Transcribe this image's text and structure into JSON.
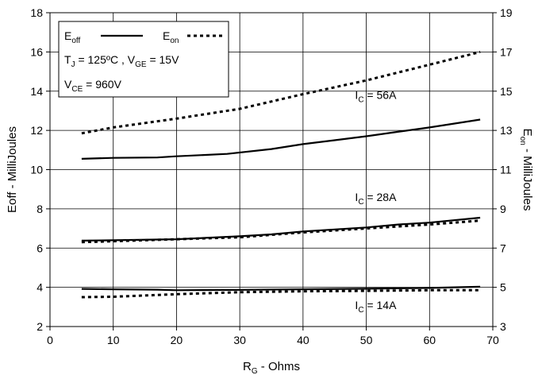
{
  "chart_data": {
    "type": "line",
    "xlabel": {
      "main": "R",
      "sub": "G",
      "rest": " - Ohms"
    },
    "ylabel_left": "Eoff - MilliJoules",
    "ylabel_right": {
      "main": "E",
      "sub": "on",
      "rest": " - MilliJoules"
    },
    "xlim": [
      0,
      70
    ],
    "ylim_left": [
      2,
      18
    ],
    "ylim_right": [
      3,
      19
    ],
    "x_ticks": [
      0,
      10,
      20,
      30,
      40,
      50,
      60,
      70
    ],
    "y_ticks_left": [
      2,
      4,
      6,
      8,
      10,
      12,
      14,
      16,
      18
    ],
    "y_ticks_right": [
      3,
      5,
      7,
      9,
      11,
      13,
      15,
      17,
      19
    ],
    "grid": true,
    "legend": {
      "placement": "top-left",
      "eoff": {
        "main": "E",
        "sub": "off"
      },
      "eon": {
        "main": "E",
        "sub": "on"
      },
      "line1": {
        "a": "T",
        "a_sub": "J",
        "b": " = 125ºC ,  V",
        "b_sub": "GE",
        "c": " = 15V"
      },
      "line2": {
        "a": "V",
        "a_sub": "CE",
        "b": " = 960V"
      }
    },
    "annotations": [
      {
        "pre": "I",
        "sub": "C",
        "post": " = 56A",
        "x": 55,
        "y": 13.8,
        "axis": "left"
      },
      {
        "pre": "I",
        "sub": "C",
        "post": " = 28A",
        "x": 55,
        "y": 8.6,
        "axis": "left"
      },
      {
        "pre": "I",
        "sub": "C",
        "post": " = 14A",
        "x": 55,
        "y": 3.1,
        "axis": "left"
      }
    ],
    "series": [
      {
        "kind": "eoff",
        "current": "56A",
        "axis": "left",
        "style": "solid",
        "x": [
          5,
          10,
          17,
          20,
          28,
          35,
          40,
          45,
          50,
          55,
          60,
          68
        ],
        "values": [
          10.55,
          10.6,
          10.62,
          10.68,
          10.8,
          11.05,
          11.3,
          11.5,
          11.7,
          11.93,
          12.15,
          12.55
        ]
      },
      {
        "kind": "eon",
        "current": "56A",
        "axis": "right",
        "style": "dashed",
        "x": [
          5,
          10,
          20,
          30,
          40,
          50,
          60,
          68
        ],
        "values": [
          12.85,
          13.15,
          13.6,
          14.1,
          14.85,
          15.55,
          16.35,
          17.0
        ]
      },
      {
        "kind": "eoff",
        "current": "28A",
        "axis": "left",
        "style": "solid",
        "x": [
          5,
          10,
          20,
          30,
          35,
          40,
          45,
          50,
          55,
          60,
          68
        ],
        "values": [
          6.38,
          6.4,
          6.45,
          6.6,
          6.7,
          6.85,
          6.95,
          7.05,
          7.2,
          7.3,
          7.55
        ]
      },
      {
        "kind": "eon",
        "current": "28A",
        "axis": "right",
        "style": "dashed",
        "x": [
          5,
          10,
          20,
          30,
          40,
          50,
          60,
          68
        ],
        "values": [
          7.3,
          7.35,
          7.45,
          7.55,
          7.8,
          8.0,
          8.2,
          8.4
        ]
      },
      {
        "kind": "eoff",
        "current": "14A",
        "axis": "left",
        "style": "solid",
        "x": [
          5,
          10,
          17,
          20,
          30,
          40,
          50,
          60,
          68
        ],
        "values": [
          3.92,
          3.9,
          3.88,
          3.85,
          3.87,
          3.9,
          3.93,
          3.97,
          4.03
        ]
      },
      {
        "kind": "eon",
        "current": "14A",
        "axis": "right",
        "style": "dashed",
        "x": [
          5,
          10,
          20,
          30,
          40,
          50,
          60,
          68
        ],
        "values": [
          4.5,
          4.52,
          4.65,
          4.75,
          4.8,
          4.82,
          4.85,
          4.85
        ]
      }
    ]
  }
}
